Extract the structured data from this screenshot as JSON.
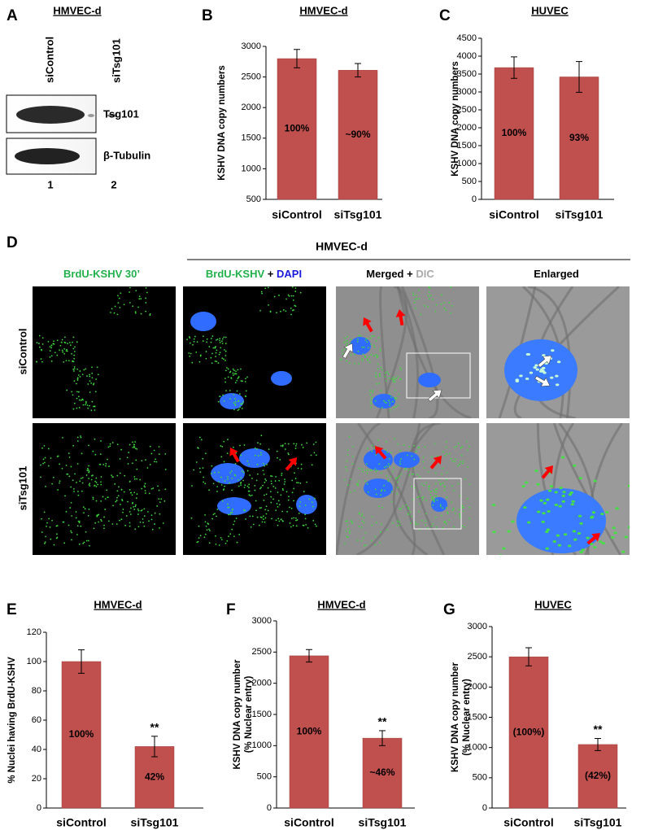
{
  "panel_a": {
    "panel": "A",
    "title": "HMVEC-d",
    "lanes": [
      "siControl",
      "siTsg101"
    ],
    "bands": [
      "Tsg101",
      "β-Tubulin"
    ],
    "lane_numbers": [
      "1",
      "2"
    ]
  },
  "panel_d": {
    "panel": "D",
    "title": "HMVEC-d",
    "columns": [
      [
        "BrdU-KSHV 30’"
      ],
      [
        "BrdU-KSHV",
        "+",
        "DAPI"
      ],
      [
        "Merged",
        "+",
        "DIC"
      ],
      [
        "Enlarged"
      ]
    ],
    "rows": [
      "siControl",
      "siTsg101"
    ]
  },
  "chart_data": [
    {
      "type": "bar",
      "panel": "B",
      "title": "HMVEC-d",
      "ylabel": [
        "KSHV DNA copy numbers"
      ],
      "categories": [
        "siControl",
        "siTsg101"
      ],
      "values": [
        2800,
        2610
      ],
      "errors": [
        150,
        110
      ],
      "bar_notes": [
        "100%",
        "~90%"
      ],
      "color": "#c0504d",
      "ylim": [
        500,
        3000
      ],
      "yticks": [
        500,
        1000,
        1500,
        2000,
        2500,
        3000
      ]
    },
    {
      "type": "bar",
      "panel": "C",
      "title": "HUVEC",
      "ylabel": [
        "KSHV DNA copy numbers"
      ],
      "categories": [
        "siControl",
        "siTsg101"
      ],
      "values": [
        3680,
        3420
      ],
      "errors": [
        300,
        430
      ],
      "bar_notes": [
        "100%",
        "93%"
      ],
      "color": "#c0504d",
      "ylim": [
        0,
        4500
      ],
      "yticks": [
        0,
        500,
        1000,
        1500,
        2000,
        2500,
        3000,
        3500,
        4000,
        4500
      ]
    },
    {
      "type": "bar",
      "panel": "E",
      "title": "HMVEC-d",
      "ylabel": [
        "% Nuclei  having  BrdU-KSHV"
      ],
      "categories": [
        "siControl",
        "siTsg101"
      ],
      "values": [
        100,
        42
      ],
      "errors": [
        8,
        7
      ],
      "bar_notes": [
        "100%",
        "42%"
      ],
      "annotations": [
        {
          "text": "**",
          "category": "siTsg101"
        }
      ],
      "color": "#c0504d",
      "ylim": [
        0,
        120
      ],
      "yticks": [
        0,
        20,
        40,
        60,
        80,
        100,
        120
      ]
    },
    {
      "type": "bar",
      "panel": "F",
      "title": "HMVEC-d",
      "ylabel": [
        "KSHV DNA copy number",
        "(% Nuclear entry)"
      ],
      "categories": [
        "siControl",
        "siTsg101"
      ],
      "values": [
        2440,
        1120
      ],
      "errors": [
        100,
        120
      ],
      "bar_notes": [
        "100%",
        "~46%"
      ],
      "annotations": [
        {
          "text": "**",
          "category": "siTsg101"
        }
      ],
      "color": "#c0504d",
      "ylim": [
        0,
        3000
      ],
      "yticks": [
        0,
        500,
        1000,
        1500,
        2000,
        2500,
        3000
      ]
    },
    {
      "type": "bar",
      "panel": "G",
      "title": "HUVEC",
      "ylabel": [
        "KSHV DNA copy number",
        "(% Nuclear entry)"
      ],
      "categories": [
        "siControl",
        "siTsg101"
      ],
      "values": [
        2500,
        1050
      ],
      "errors": [
        150,
        100
      ],
      "bar_notes": [
        "(100%)",
        "(42%)"
      ],
      "annotations": [
        {
          "text": "**",
          "category": "siTsg101"
        }
      ],
      "color": "#c0504d",
      "ylim": [
        0,
        3000
      ],
      "yticks": [
        0,
        500,
        1000,
        1500,
        2000,
        2500,
        3000
      ]
    }
  ]
}
